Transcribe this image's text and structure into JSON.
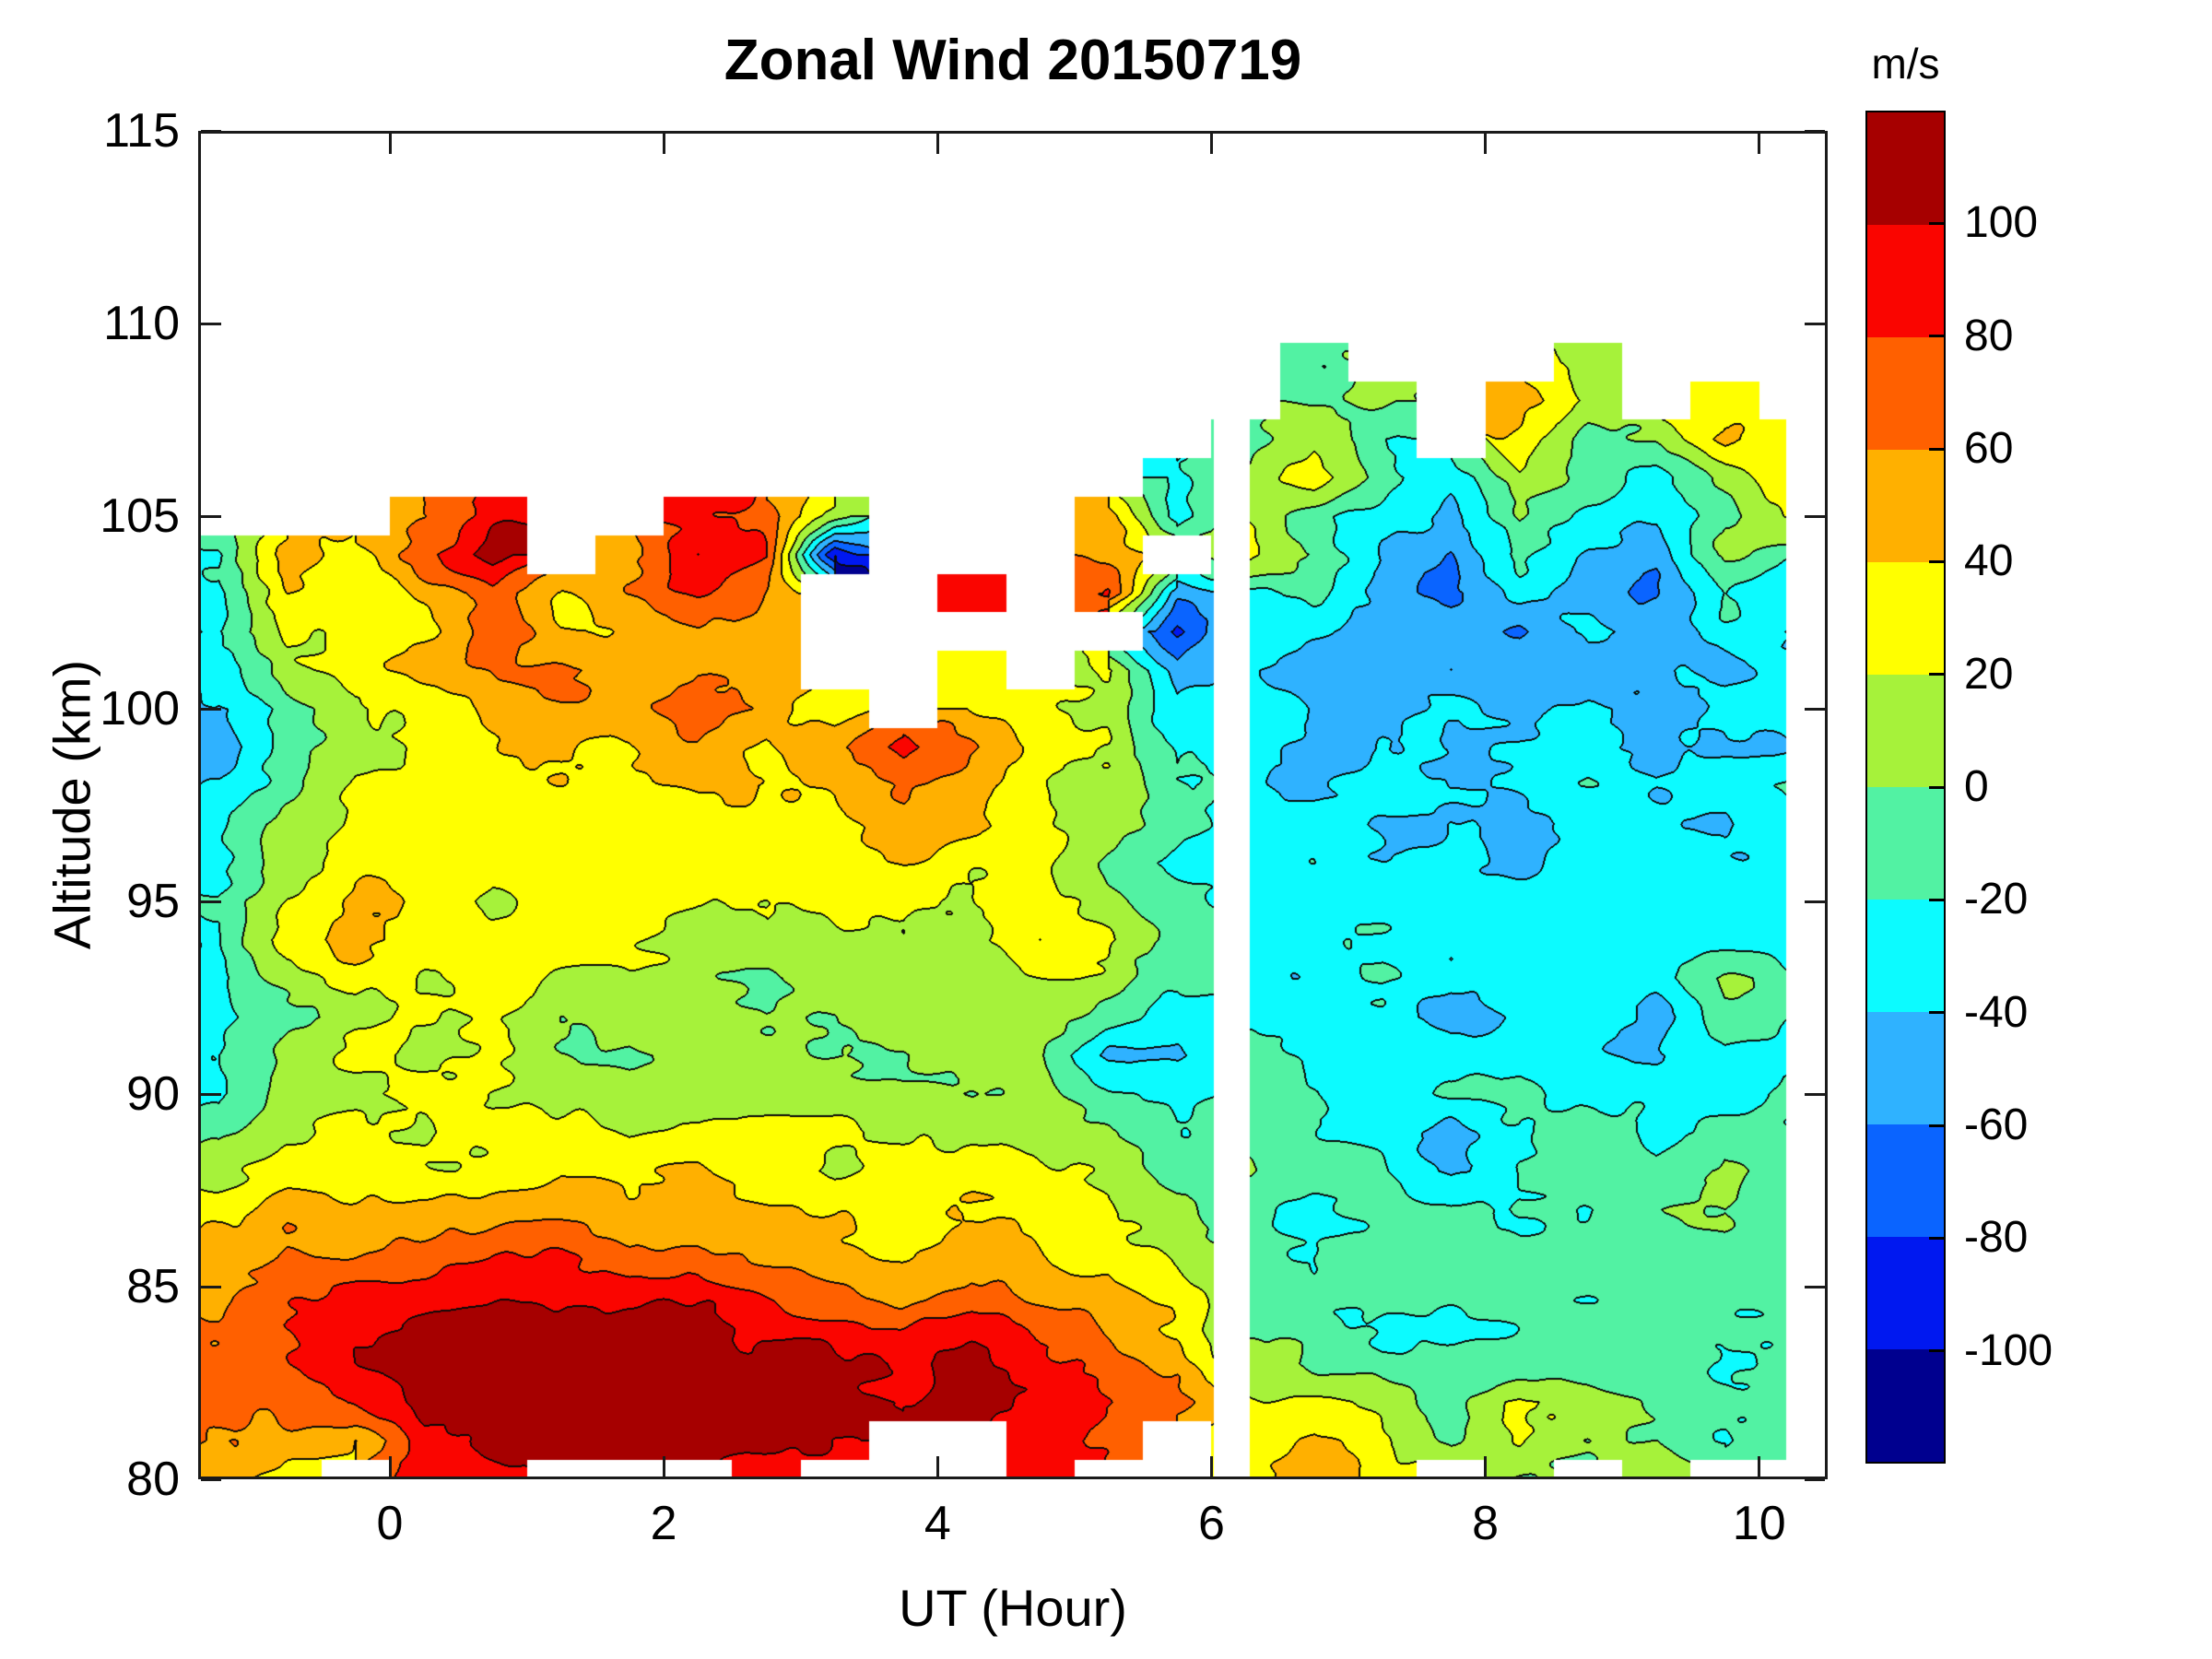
{
  "title": "Zonal Wind 20150719",
  "axes": {
    "xlabel": "UT (Hour)",
    "ylabel": "Altitude (km)",
    "x_min": -1.4,
    "x_max": 10.5,
    "y_min": 80,
    "y_max": 115,
    "x_ticks": [
      0,
      2,
      4,
      6,
      8,
      10
    ],
    "x_tick_labels": [
      "0",
      "2",
      "4",
      "6",
      "8",
      "10"
    ],
    "y_ticks": [
      115,
      110,
      105,
      100,
      95,
      90,
      85,
      80
    ],
    "y_tick_labels": [
      "115",
      "110",
      "105",
      "100",
      "95",
      "90",
      "85",
      "80"
    ],
    "grid": false
  },
  "colorbar": {
    "unit_label": "m/s",
    "tick_values": [
      100,
      80,
      60,
      40,
      20,
      0,
      -20,
      -40,
      -60,
      -80,
      -100
    ],
    "tick_labels": [
      "100",
      "80",
      "60",
      "40",
      "20",
      "0",
      "-20",
      "-40",
      "-60",
      "-80",
      "-100"
    ],
    "level_min": -120,
    "level_max": 120,
    "level_step": 20,
    "colors_low_to_high": [
      "#00008F",
      "#0018F0",
      "#0A64FF",
      "#2FB2FF",
      "#0CFBFF",
      "#52F2A3",
      "#A6F23A",
      "#FFFF00",
      "#FFB000",
      "#FF6000",
      "#FA0500",
      "#A60000"
    ],
    "contour_line_color": "#000000"
  },
  "chart_data": {
    "type": "contour",
    "title": "Zonal Wind 20150719",
    "xlabel": "UT (Hour)",
    "ylabel": "Altitude (km)",
    "value_unit": "m/s",
    "x": [
      -1.25,
      -0.75,
      -0.25,
      0.25,
      0.75,
      1.25,
      1.75,
      2.25,
      2.75,
      3.25,
      3.75,
      4.25,
      4.75,
      5.25,
      5.75,
      6.25,
      6.75,
      7.25,
      7.75,
      8.25,
      8.75,
      9.25,
      9.75,
      10.25
    ],
    "y": [
      109,
      108,
      107,
      106,
      105,
      104,
      103,
      102,
      101,
      100,
      99,
      98,
      97,
      96,
      95,
      94,
      93,
      92,
      91,
      90,
      89,
      88,
      87,
      86,
      85,
      84,
      83,
      82,
      81,
      80
    ],
    "values": [
      [
        null,
        null,
        null,
        null,
        null,
        null,
        null,
        null,
        null,
        null,
        null,
        null,
        null,
        null,
        null,
        null,
        -5,
        null,
        null,
        null,
        10,
        null,
        null,
        null
      ],
      [
        null,
        null,
        null,
        null,
        null,
        null,
        null,
        null,
        null,
        null,
        null,
        null,
        null,
        null,
        null,
        null,
        -8,
        5,
        null,
        55,
        20,
        null,
        35,
        null
      ],
      [
        null,
        null,
        null,
        null,
        null,
        null,
        null,
        null,
        null,
        null,
        null,
        null,
        null,
        null,
        null,
        -5,
        10,
        -20,
        null,
        30,
        -5,
        5,
        45,
        25
      ],
      [
        null,
        null,
        null,
        null,
        null,
        null,
        null,
        null,
        null,
        null,
        null,
        null,
        null,
        null,
        -25,
        5,
        30,
        -15,
        -35,
        15,
        -10,
        -25,
        10,
        40
      ],
      [
        null,
        null,
        null,
        60,
        95,
        null,
        null,
        85,
        70,
        15,
        null,
        null,
        null,
        55,
        -30,
        20,
        -10,
        -30,
        -50,
        5,
        -30,
        -40,
        -5,
        20
      ],
      [
        -25,
        55,
        30,
        75,
        110,
        null,
        45,
        100,
        80,
        -95,
        null,
        null,
        null,
        55,
        null,
        25,
        -5,
        -45,
        -60,
        -10,
        -45,
        -55,
        5,
        -15
      ],
      [
        -30,
        40,
        25,
        45,
        70,
        35,
        60,
        85,
        60,
        null,
        null,
        85,
        null,
        80,
        -55,
        -30,
        -20,
        -50,
        -65,
        -30,
        -55,
        -60,
        -20,
        -35
      ],
      [
        -15,
        30,
        20,
        35,
        75,
        40,
        50,
        65,
        45,
        null,
        null,
        null,
        null,
        null,
        -85,
        -25,
        -40,
        -55,
        -45,
        -60,
        -40,
        -50,
        -30,
        -45
      ],
      [
        -40,
        15,
        30,
        45,
        60,
        70,
        55,
        60,
        40,
        null,
        null,
        25,
        null,
        25,
        -50,
        -35,
        -50,
        -40,
        -55,
        -45,
        -65,
        -40,
        -45,
        -30
      ],
      [
        -45,
        -20,
        15,
        30,
        45,
        55,
        45,
        75,
        55,
        30,
        null,
        45,
        35,
        15,
        -40,
        -20,
        -35,
        -45,
        -40,
        -55,
        -35,
        -45,
        -40,
        -25
      ],
      [
        -50,
        -15,
        10,
        25,
        35,
        45,
        40,
        55,
        45,
        55,
        85,
        60,
        30,
        20,
        -30,
        -25,
        -45,
        -35,
        -50,
        -40,
        -30,
        -50,
        -35,
        -40
      ],
      [
        -35,
        -10,
        20,
        30,
        25,
        35,
        30,
        45,
        35,
        45,
        65,
        45,
        25,
        10,
        -20,
        -30,
        -40,
        -30,
        -45,
        -35,
        -25,
        -40,
        -30,
        -20
      ],
      [
        -25,
        5,
        25,
        35,
        30,
        25,
        35,
        30,
        40,
        35,
        55,
        35,
        20,
        5,
        -15,
        -35,
        -30,
        -45,
        -35,
        -50,
        -40,
        -30,
        -45,
        -30
      ],
      [
        -25,
        15,
        35,
        25,
        20,
        30,
        25,
        35,
        30,
        25,
        40,
        30,
        30,
        -5,
        -25,
        -30,
        -25,
        -35,
        -30,
        -40,
        -35,
        -25,
        -35,
        -40
      ],
      [
        -15,
        25,
        40,
        35,
        15,
        25,
        35,
        25,
        20,
        30,
        25,
        20,
        35,
        10,
        -10,
        -25,
        -35,
        -25,
        -40,
        -30,
        -25,
        -35,
        -30,
        -25
      ],
      [
        -20,
        30,
        45,
        30,
        25,
        35,
        25,
        5,
        15,
        10,
        20,
        15,
        40,
        25,
        -5,
        -30,
        -25,
        -30,
        -35,
        -25,
        -30,
        -20,
        -35,
        -30
      ],
      [
        -25,
        10,
        30,
        25,
        35,
        10,
        15,
        5,
        -5,
        10,
        0,
        5,
        15,
        15,
        -20,
        -25,
        -35,
        -20,
        -30,
        -25,
        -35,
        -25,
        5,
        -15
      ],
      [
        -30,
        -5,
        15,
        30,
        25,
        0,
        10,
        15,
        0,
        -5,
        10,
        0,
        5,
        -10,
        -30,
        -20,
        -30,
        -25,
        -55,
        -30,
        -25,
        -50,
        -10,
        -25
      ],
      [
        -25,
        5,
        25,
        15,
        30,
        5,
        -5,
        10,
        5,
        0,
        -5,
        10,
        0,
        -45,
        -35,
        -15,
        -25,
        -20,
        -35,
        -25,
        -30,
        -45,
        -20,
        -30
      ],
      [
        -25,
        15,
        20,
        25,
        15,
        10,
        15,
        0,
        10,
        15,
        5,
        0,
        10,
        -20,
        -25,
        -10,
        -20,
        -30,
        -20,
        -15,
        -25,
        -20,
        -30,
        -15
      ],
      [
        -10,
        20,
        25,
        15,
        20,
        30,
        20,
        25,
        35,
        25,
        15,
        20,
        15,
        5,
        -15,
        -5,
        -15,
        -25,
        -45,
        -20,
        -10,
        -25,
        -15,
        -20
      ],
      [
        10,
        30,
        25,
        30,
        25,
        35,
        30,
        40,
        30,
        20,
        25,
        30,
        20,
        15,
        -10,
        0,
        -10,
        -20,
        -42,
        -15,
        -5,
        -15,
        10,
        -10
      ],
      [
        25,
        45,
        40,
        45,
        50,
        55,
        45,
        50,
        40,
        35,
        30,
        35,
        30,
        20,
        5,
        -10,
        -25,
        -5,
        -20,
        -10,
        -15,
        -10,
        0,
        -15
      ],
      [
        45,
        60,
        55,
        65,
        70,
        75,
        60,
        65,
        55,
        45,
        40,
        45,
        40,
        30,
        15,
        -5,
        -22,
        -15,
        -10,
        -20,
        -10,
        -20,
        -5,
        -10
      ],
      [
        55,
        75,
        85,
        80,
        90,
        95,
        85,
        90,
        75,
        65,
        55,
        60,
        50,
        45,
        25,
        0,
        -15,
        -10,
        -15,
        -5,
        -15,
        -10,
        -15,
        -20
      ],
      [
        65,
        85,
        95,
        105,
        115,
        110,
        115,
        105,
        95,
        85,
        80,
        90,
        75,
        60,
        40,
        -5,
        -10,
        -20,
        -25,
        -15,
        -10,
        -15,
        -10,
        -15
      ],
      [
        70,
        80,
        100,
        115,
        120,
        115,
        120,
        115,
        110,
        100,
        95,
        105,
        85,
        75,
        55,
        5,
        -10,
        -15,
        -5,
        -10,
        -20,
        -10,
        -20,
        -10
      ],
      [
        60,
        70,
        85,
        110,
        115,
        120,
        115,
        120,
        115,
        105,
        100,
        110,
        90,
        80,
        65,
        20,
        25,
        10,
        -10,
        25,
        20,
        -10,
        -5,
        -15
      ],
      [
        60,
        45,
        35,
        95,
        105,
        110,
        115,
        110,
        105,
        95,
        null,
        null,
        95,
        70,
        null,
        25,
        45,
        20,
        -5,
        15,
        0,
        5,
        -15,
        -10
      ],
      [
        45,
        35,
        null,
        85,
        90,
        null,
        null,
        null,
        100,
        null,
        null,
        null,
        100,
        null,
        null,
        35,
        55,
        25,
        null,
        5,
        null,
        15,
        null,
        null
      ]
    ],
    "data_gaps": [
      {
        "x_start": 6.02,
        "x_end": 6.28
      }
    ],
    "x_data_max": 10.2,
    "render_hints": {
      "noise_seed": 7,
      "noise_amp_coarse": 7,
      "noise_amp_fine": 4.5
    }
  }
}
